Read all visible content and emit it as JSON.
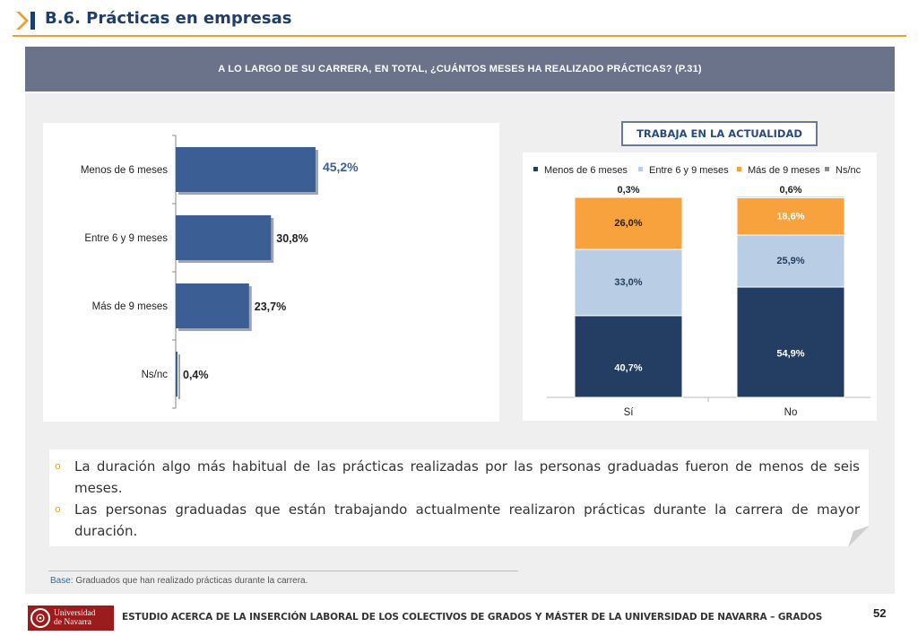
{
  "header": {
    "section_title": "B.6. Prácticas en empresas",
    "question": "A LO LARGO DE SU CARRERA, EN TOTAL, ¿CUÁNTOS MESES HA REALIZADO PRÁCTICAS? (P.31)"
  },
  "colors": {
    "bar_blue": "#3b5f94",
    "dark_navy": "#243e63",
    "light_blue": "#b9cde5",
    "orange": "#f7a23c",
    "gray": "#8c8c8c",
    "accent_orange": "#f0a030"
  },
  "badge": "TRABAJA EN LA ACTUALIDAD",
  "chart_data": [
    {
      "type": "bar",
      "orientation": "horizontal",
      "categories": [
        "Menos de 6 meses",
        "Entre 6 y 9 meses",
        "Más de 9 meses",
        "Ns/nc"
      ],
      "values": [
        45.2,
        30.8,
        23.7,
        0.4
      ],
      "labels": [
        "45,2%",
        "30,8%",
        "23,7%",
        "0,4%"
      ],
      "title": "",
      "xlabel": "",
      "ylabel": "",
      "xlim": [
        0,
        100
      ]
    },
    {
      "type": "bar",
      "stacked": true,
      "title": "TRABAJA EN LA ACTUALIDAD",
      "categories": [
        "Sí",
        "No"
      ],
      "legend_position": "top",
      "series": [
        {
          "name": "Menos de 6 meses",
          "values": [
            40.7,
            54.9
          ],
          "labels": [
            "40,7%",
            "54,9%"
          ]
        },
        {
          "name": "Entre 6 y 9 meses",
          "values": [
            33.0,
            25.9
          ],
          "labels": [
            "33,0%",
            "25,9%"
          ]
        },
        {
          "name": "Más de 9 meses",
          "values": [
            26.0,
            18.6
          ],
          "labels": [
            "26,0%",
            "18,6%"
          ]
        },
        {
          "name": "Ns/nc",
          "values": [
            0.3,
            0.6
          ],
          "labels": [
            "0,3%",
            "0,6%"
          ]
        }
      ],
      "ylim": [
        0,
        100
      ]
    }
  ],
  "notes": [
    "La duración algo más habitual de las prácticas realizadas por las personas graduadas fueron de menos de seis meses.",
    "Las personas graduadas que están trabajando actualmente realizaron prácticas durante la carrera de mayor duración."
  ],
  "base": {
    "key": "Base:",
    "text": " Graduados que han realizado prácticas durante la carrera."
  },
  "footer": {
    "logo_line1": "Universidad",
    "logo_line2": "de Navarra",
    "text": "ESTUDIO ACERCA DE LA INSERCIÓN LABORAL DE LOS COLECTIVOS DE GRADOS Y MÁSTER DE LA UNIVERSIDAD DE NAVARRA – GRADOS",
    "page_number": "52"
  }
}
